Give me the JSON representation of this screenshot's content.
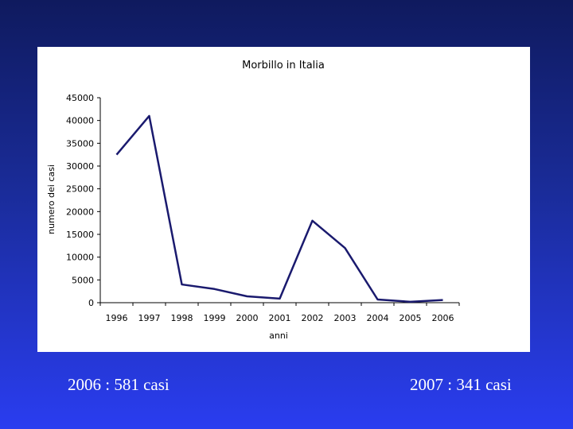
{
  "chart_data": {
    "type": "line",
    "title": "Morbillo in Italia",
    "xlabel": "anni",
    "ylabel": "numero dei casi",
    "categories": [
      "1996",
      "1997",
      "1998",
      "1999",
      "2000",
      "2001",
      "2002",
      "2003",
      "2004",
      "2005",
      "2006"
    ],
    "series": [
      {
        "values": [
          32500,
          41000,
          4000,
          3000,
          1400,
          900,
          18000,
          12000,
          700,
          200,
          581
        ]
      }
    ],
    "yticks": [
      "0",
      "5000",
      "10000",
      "15000",
      "20000",
      "25000",
      "30000",
      "35000",
      "40000",
      "45000"
    ],
    "ylim": [
      0,
      45000
    ],
    "grid": false,
    "legend": "none",
    "line_color": "#1a1a6e"
  },
  "captions": {
    "left": "2006 : 581 casi",
    "right": "2007 :  341 casi"
  }
}
